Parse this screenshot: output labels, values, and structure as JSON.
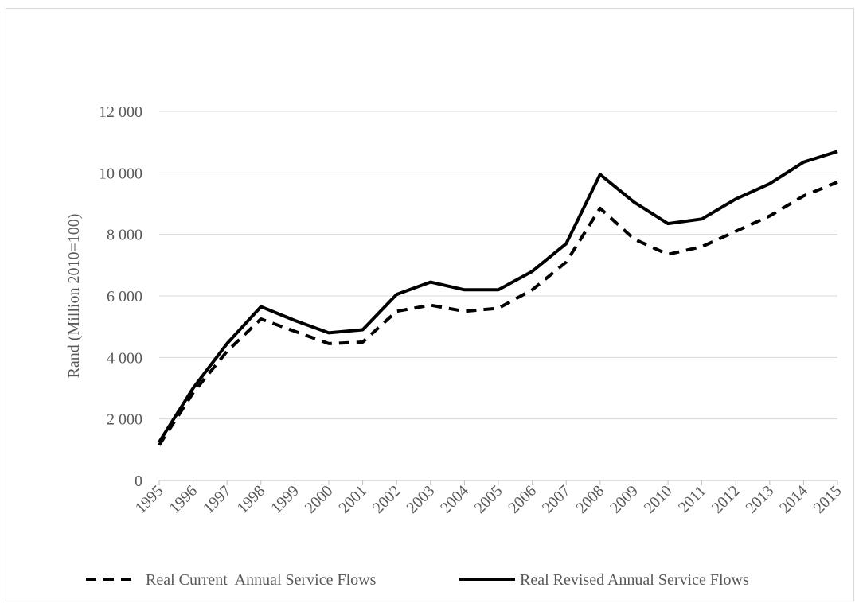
{
  "chart_data": {
    "type": "line",
    "title": "",
    "xlabel": "",
    "ylabel": "Rand (Million 2010=100)",
    "ylim": [
      0,
      12000
    ],
    "yticks": [
      0,
      2000,
      4000,
      6000,
      8000,
      10000,
      12000
    ],
    "ytick_labels": [
      "0",
      "2 000",
      "4 000",
      "6 000",
      "8 000",
      "10 000",
      "12 000"
    ],
    "grid": true,
    "legend_position": "bottom",
    "categories": [
      "1995",
      "1996",
      "1997",
      "1998",
      "1999",
      "2000",
      "2001",
      "2002",
      "2003",
      "2004",
      "2005",
      "2006",
      "2007",
      "2008",
      "2009",
      "2010",
      "2011",
      "2012",
      "2013",
      "2014",
      "2015"
    ],
    "series": [
      {
        "name": "Real Current  Annual Service Flows",
        "style": "dashed",
        "color": "#000000",
        "values": [
          1150,
          2850,
          4200,
          5250,
          4850,
          4450,
          4500,
          5500,
          5700,
          5500,
          5600,
          6200,
          7100,
          8850,
          7850,
          7350,
          7600,
          8100,
          8600,
          9250,
          9700
        ]
      },
      {
        "name": "Real Revised Annual Service Flows",
        "style": "solid",
        "color": "#000000",
        "values": [
          1250,
          3000,
          4450,
          5650,
          5200,
          4800,
          4900,
          6050,
          6450,
          6200,
          6200,
          6800,
          7700,
          9950,
          9050,
          8350,
          8500,
          9150,
          9650,
          10350,
          10700
        ]
      }
    ]
  }
}
